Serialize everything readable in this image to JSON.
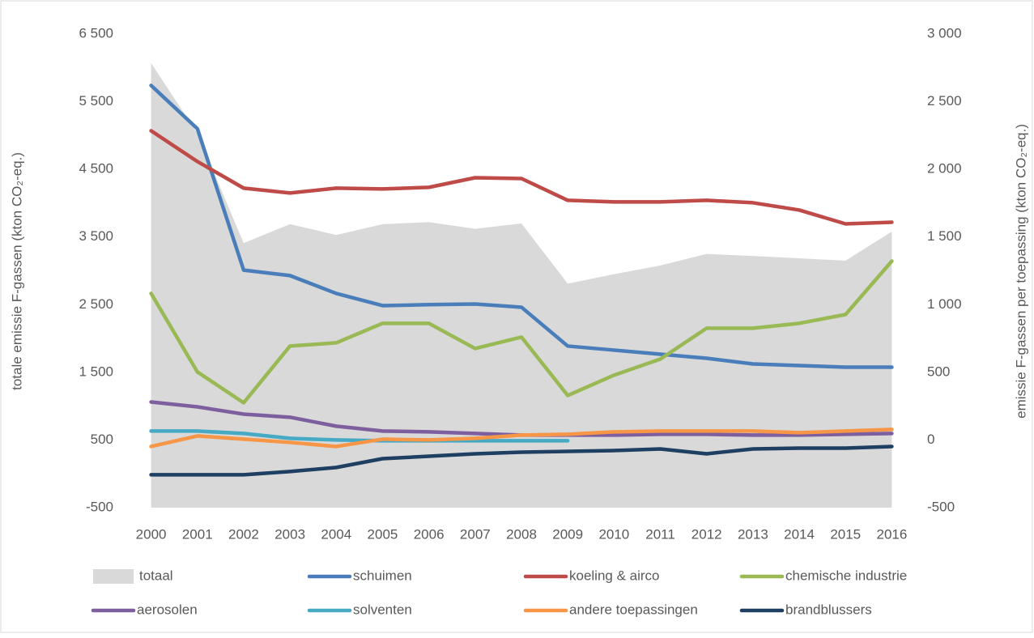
{
  "chart_data": {
    "type": "line",
    "categories": [
      "2000",
      "2001",
      "2002",
      "2003",
      "2004",
      "2005",
      "2006",
      "2007",
      "2008",
      "2009",
      "2010",
      "2011",
      "2012",
      "2013",
      "2014",
      "2015",
      "2016"
    ],
    "y_label": "totale emissie F-gassen (kton CO₂-eq.)",
    "y2_label": "emissie F-gassen per toepassing (kton CO₂-eq.)",
    "ylim": [
      -500,
      6500
    ],
    "yticks": [
      {
        "value": 6500,
        "label": "6 500"
      },
      {
        "value": 5500,
        "label": "5 500"
      },
      {
        "value": 4500,
        "label": "4 500"
      },
      {
        "value": 3500,
        "label": "3 500"
      },
      {
        "value": 2500,
        "label": "2 500"
      },
      {
        "value": 1500,
        "label": "1 500"
      },
      500,
      -500
    ],
    "y2lim": [
      -500,
      3000
    ],
    "y2ticks": [
      {
        "value": 3000,
        "label": "3 000"
      },
      {
        "value": 2500,
        "label": "2 500"
      },
      {
        "value": 2000,
        "label": "2 000"
      },
      {
        "value": 1500,
        "label": "1 500"
      },
      {
        "value": 1000,
        "label": "1 000"
      },
      500,
      0,
      -500
    ],
    "legend": "bottom",
    "series": [
      {
        "name": "totaal",
        "type": "area",
        "color": "#d9d9d9",
        "values": [
          6070,
          5030,
          3410,
          3690,
          3530,
          3690,
          3720,
          3620,
          3700,
          2810,
          2950,
          3080,
          3250,
          3220,
          3185,
          3150,
          3580
        ]
      },
      {
        "name": "schuimen",
        "axis": "y2",
        "color": "#4a7ebb",
        "values": [
          2620,
          2300,
          1255,
          1215,
          1083,
          993,
          1000,
          1005,
          981,
          694,
          664,
          634,
          604,
          562,
          550,
          538,
          538
        ]
      },
      {
        "name": "koeling & airco",
        "axis": "y2",
        "color": "#be4b48",
        "values": [
          2285,
          2058,
          1861,
          1825,
          1861,
          1855,
          1867,
          1938,
          1932,
          1771,
          1759,
          1759,
          1771,
          1753,
          1699,
          1597,
          1609
        ]
      },
      {
        "name": "chemische industrie",
        "axis": "y2",
        "color": "#98b954",
        "values": [
          1083,
          503,
          275,
          694,
          718,
          862,
          862,
          676,
          760,
          329,
          479,
          598,
          826,
          826,
          862,
          927,
          1322
        ]
      },
      {
        "name": "aerosolen",
        "axis": "y2",
        "color": "#7d5fa0",
        "values": [
          281,
          245,
          191,
          168,
          102,
          66,
          60,
          48,
          36,
          36,
          36,
          42,
          42,
          36,
          36,
          42,
          48
        ]
      },
      {
        "name": "solventen",
        "axis": "y2",
        "color": "#46aac5",
        "values": [
          66,
          66,
          48,
          12,
          0,
          -6,
          -6,
          -6,
          -6,
          -6,
          null,
          null,
          null,
          null,
          null,
          null,
          null
        ]
      },
      {
        "name": "andere toepassingen",
        "axis": "y2",
        "color": "#f79646",
        "values": [
          -48,
          30,
          6,
          -18,
          -48,
          6,
          0,
          12,
          36,
          42,
          60,
          66,
          66,
          66,
          54,
          66,
          78
        ]
      },
      {
        "name": "brandblussers",
        "axis": "y2",
        "color": "#1f3f62",
        "values": [
          -257,
          -257,
          -257,
          -233,
          -203,
          -138,
          -120,
          -102,
          -90,
          -84,
          -78,
          -66,
          -102,
          -66,
          -60,
          -60,
          -48
        ]
      }
    ]
  }
}
